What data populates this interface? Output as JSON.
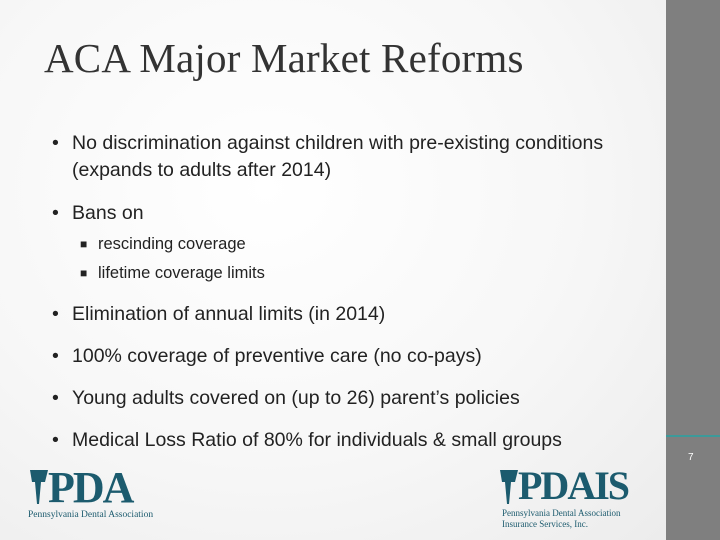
{
  "title": "ACA Major Market Reforms",
  "bullets": [
    {
      "level": 1,
      "text": "No discrimination against children with pre-existing conditions (expands to adults after 2014)"
    },
    {
      "level": 1,
      "text": "Bans on"
    },
    {
      "level": 2,
      "text": "rescinding coverage"
    },
    {
      "level": 2,
      "text": "lifetime coverage limits"
    },
    {
      "level": 1,
      "text": "Elimination of annual limits (in 2014)"
    },
    {
      "level": 1,
      "text": "100% coverage of preventive care (no co-pays)"
    },
    {
      "level": 1,
      "text": "Young adults covered on (up to 26) parent’s policies"
    },
    {
      "level": 1,
      "text": "Medical Loss Ratio of 80% for individuals & small groups"
    }
  ],
  "slide_number": "7",
  "logos": {
    "left": {
      "mark": "PDA",
      "subtitle": "Pennsylvania Dental Association"
    },
    "right": {
      "mark": "PDAIS",
      "subtitle_line1": "Pennsylvania Dental Association",
      "subtitle_line2": "Insurance Services, Inc."
    }
  },
  "colors": {
    "accent": "#1c5b6e",
    "sidebar": "#7f7f7f",
    "text": "#222222"
  }
}
